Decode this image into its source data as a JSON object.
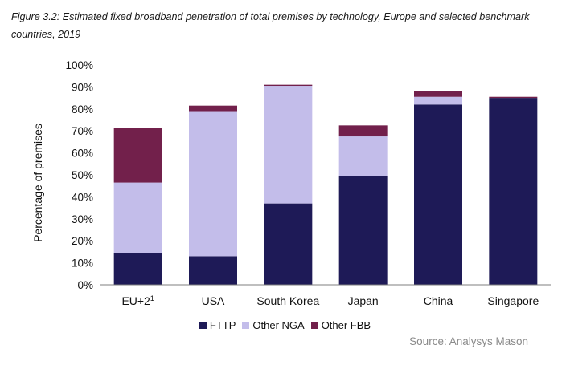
{
  "caption": "Figure 3.2: Estimated fixed broadband penetration of total premises by technology, Europe and selected benchmark countries, 2019",
  "source": "Source: Analysys Mason",
  "colors": {
    "FTTP": "#1e1a57",
    "Other NGA": "#c3bdea",
    "Other FBB": "#72204b"
  },
  "chart_data": {
    "type": "bar",
    "stacked": true,
    "title": "",
    "xlabel": "",
    "ylabel": "Percentage of premises",
    "ylim": [
      0,
      100
    ],
    "yticks": [
      "0%",
      "10%",
      "20%",
      "30%",
      "40%",
      "50%",
      "60%",
      "70%",
      "80%",
      "90%",
      "100%"
    ],
    "categories": [
      {
        "label": "EU+2",
        "superscript": "1"
      },
      {
        "label": "USA"
      },
      {
        "label": "South Korea"
      },
      {
        "label": "Japan"
      },
      {
        "label": "China"
      },
      {
        "label": "Singapore"
      }
    ],
    "series": [
      {
        "name": "FTTP",
        "values": [
          14.5,
          13,
          37,
          49.5,
          82,
          85
        ]
      },
      {
        "name": "Other NGA",
        "values": [
          32,
          66,
          53.5,
          18,
          3.5,
          0
        ]
      },
      {
        "name": "Other FBB",
        "values": [
          25,
          2.5,
          0.5,
          5,
          2.5,
          0.5
        ]
      }
    ],
    "legend": "bottom"
  }
}
